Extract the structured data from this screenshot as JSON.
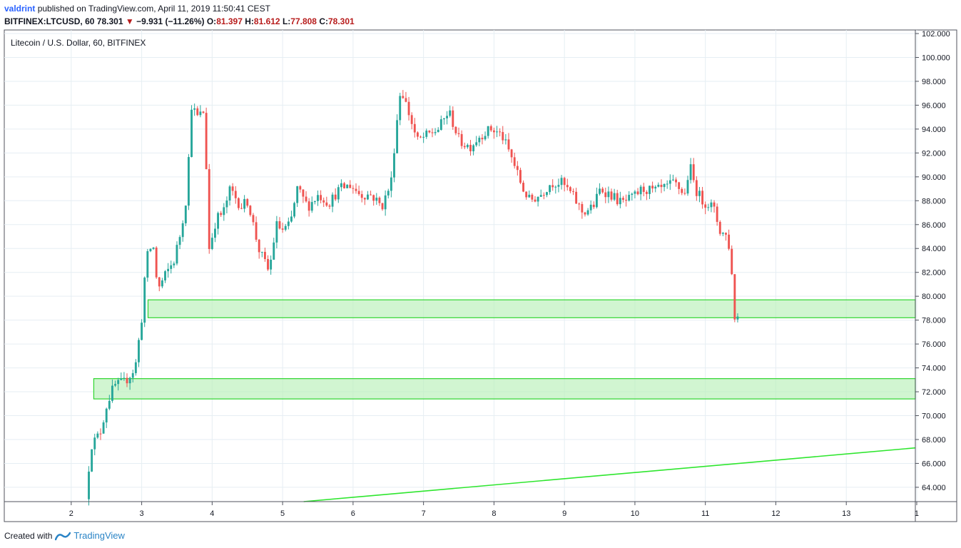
{
  "header": {
    "user": "valdrint",
    "published_text": "published on TradingView.com, April 11, 2019 11:50:41 CEST",
    "symbol": "BITFINEX:LTCUSD, 60",
    "last": "78.301",
    "change_arrow": "▼",
    "change": "−9.931 (−11.26%)",
    "o_label": "O:",
    "o": "81.397",
    "h_label": "H:",
    "h": "81.612",
    "l_label": "L:",
    "l": "77.808",
    "c_label": "C:",
    "c": "78.301"
  },
  "footer": {
    "created_with": "Created with",
    "brand": "TradingView",
    "logo_icon": "tradingview-logo-icon"
  },
  "colors": {
    "up": "#26a69a",
    "down": "#ef5350",
    "zone_fill": "#b9f0b9",
    "zone_stroke": "#2fd52f",
    "trend": "#2ee62e",
    "grid": "#e6eef3"
  },
  "chart_data": {
    "type": "candlestick",
    "title": "Litecoin / U.S. Dollar, 60, BITFINEX",
    "xlabel": "",
    "ylabel": "",
    "x_ticks": [
      "2",
      "3",
      "4",
      "5",
      "6",
      "7",
      "8",
      "9",
      "10",
      "11",
      "12",
      "13",
      "1"
    ],
    "y_ticks": [
      "102.000",
      "100.000",
      "98.000",
      "96.000",
      "94.000",
      "92.000",
      "90.000",
      "88.000",
      "86.000",
      "84.000",
      "82.000",
      "80.000",
      "78.000",
      "76.000",
      "74.000",
      "72.000",
      "70.000",
      "68.000",
      "66.000",
      "64.000"
    ],
    "xlim": [
      1.05,
      13.98
    ],
    "ylim": [
      62.8,
      102.3
    ],
    "grid": true,
    "price_path": [
      [
        2.25,
        63.0
      ],
      [
        2.32,
        67.5
      ],
      [
        2.45,
        68.5
      ],
      [
        2.55,
        71.0
      ],
      [
        2.65,
        72.5
      ],
      [
        2.8,
        72.8
      ],
      [
        2.95,
        74.0
      ],
      [
        3.05,
        78.5
      ],
      [
        3.1,
        83.0
      ],
      [
        3.2,
        84.5
      ],
      [
        3.27,
        80.5
      ],
      [
        3.38,
        81.8
      ],
      [
        3.5,
        83.0
      ],
      [
        3.6,
        85.5
      ],
      [
        3.68,
        88.5
      ],
      [
        3.75,
        96.0
      ],
      [
        3.83,
        95.0
      ],
      [
        3.93,
        95.5
      ],
      [
        4.0,
        84.0
      ],
      [
        4.1,
        86.5
      ],
      [
        4.2,
        87.0
      ],
      [
        4.3,
        89.0
      ],
      [
        4.45,
        87.5
      ],
      [
        4.55,
        88.0
      ],
      [
        4.7,
        84.0
      ],
      [
        4.85,
        82.0
      ],
      [
        4.95,
        86.0
      ],
      [
        5.05,
        85.5
      ],
      [
        5.15,
        86.0
      ],
      [
        5.25,
        89.0
      ],
      [
        5.4,
        87.5
      ],
      [
        5.55,
        88.5
      ],
      [
        5.7,
        87.8
      ],
      [
        5.85,
        89.0
      ],
      [
        6.0,
        89.3
      ],
      [
        6.15,
        88.5
      ],
      [
        6.3,
        88.5
      ],
      [
        6.45,
        87.5
      ],
      [
        6.58,
        89.5
      ],
      [
        6.65,
        94.0
      ],
      [
        6.72,
        97.5
      ],
      [
        6.85,
        95.0
      ],
      [
        6.95,
        93.0
      ],
      [
        7.1,
        93.5
      ],
      [
        7.25,
        94.0
      ],
      [
        7.4,
        95.5
      ],
      [
        7.55,
        93.0
      ],
      [
        7.7,
        92.5
      ],
      [
        7.85,
        93.5
      ],
      [
        8.0,
        94.0
      ],
      [
        8.15,
        93.5
      ],
      [
        8.3,
        91.5
      ],
      [
        8.45,
        89.0
      ],
      [
        8.55,
        88.0
      ],
      [
        8.7,
        88.5
      ],
      [
        8.85,
        89.5
      ],
      [
        9.0,
        89.5
      ],
      [
        9.15,
        88.5
      ],
      [
        9.3,
        87.0
      ],
      [
        9.45,
        87.5
      ],
      [
        9.55,
        89.0
      ],
      [
        9.7,
        88.5
      ],
      [
        9.85,
        87.8
      ],
      [
        10.0,
        88.2
      ],
      [
        10.15,
        89.0
      ],
      [
        10.3,
        88.8
      ],
      [
        10.45,
        89.0
      ],
      [
        10.6,
        89.5
      ],
      [
        10.75,
        88.5
      ],
      [
        10.82,
        91.0
      ],
      [
        10.9,
        89.0
      ],
      [
        11.0,
        88.0
      ],
      [
        11.15,
        87.5
      ],
      [
        11.25,
        85.5
      ],
      [
        11.35,
        85.0
      ],
      [
        11.4,
        83.5
      ],
      [
        11.45,
        78.3
      ]
    ],
    "last_close": 78.301,
    "zones": [
      {
        "x0": 3.09,
        "x1": 13.98,
        "y0": 78.2,
        "y1": 79.7
      },
      {
        "x0": 2.32,
        "x1": 13.98,
        "y0": 71.4,
        "y1": 73.1
      }
    ],
    "trendline": {
      "x0": 5.3,
      "y0": 62.8,
      "x1": 13.98,
      "y1": 67.3
    }
  }
}
